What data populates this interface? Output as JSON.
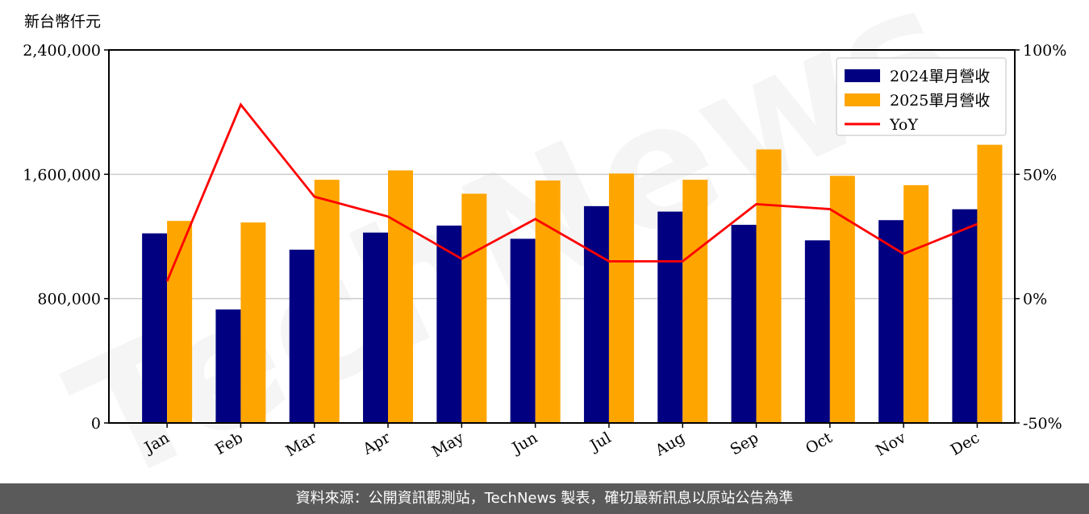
{
  "chart_data": {
    "type": "bar",
    "y_unit_label": "新台幣仟元",
    "categories": [
      "Jan",
      "Feb",
      "Mar",
      "Apr",
      "May",
      "Jun",
      "Jul",
      "Aug",
      "Sep",
      "Oct",
      "Nov",
      "Dec"
    ],
    "series": [
      {
        "name": "2024單月營收",
        "type": "bar",
        "axis": "left",
        "color": "#000080",
        "values": [
          1220000,
          730000,
          1115000,
          1225000,
          1270000,
          1185000,
          1395000,
          1360000,
          1275000,
          1175000,
          1305000,
          1375000
        ]
      },
      {
        "name": "2025單月營收",
        "type": "bar",
        "axis": "left",
        "color": "#ffa500",
        "values": [
          1300000,
          1290000,
          1565000,
          1625000,
          1475000,
          1560000,
          1605000,
          1565000,
          1760000,
          1590000,
          1530000,
          1790000
        ]
      },
      {
        "name": "YoY",
        "type": "line",
        "axis": "right",
        "color": "#ff0000",
        "values": [
          7,
          78,
          41,
          33,
          16,
          32,
          15,
          15,
          38,
          36,
          18,
          30
        ]
      }
    ],
    "y_left": {
      "min": 0,
      "max": 2400000,
      "ticks": [
        0,
        800000,
        1600000,
        2400000
      ],
      "tick_labels": [
        "0",
        "800,000",
        "1,600,000",
        "2,400,000"
      ]
    },
    "y_right": {
      "min": -50,
      "max": 100,
      "ticks": [
        -50,
        0,
        50,
        100
      ],
      "tick_labels": [
        "-50%",
        "0%",
        "50%",
        "100%"
      ]
    },
    "grid": "horizontal",
    "legend_position": "top-right",
    "watermark": "TechNews"
  },
  "footer": {
    "text": "資料來源：公開資訊觀測站，TechNews 製表，確切最新訊息以原站公告為準"
  }
}
